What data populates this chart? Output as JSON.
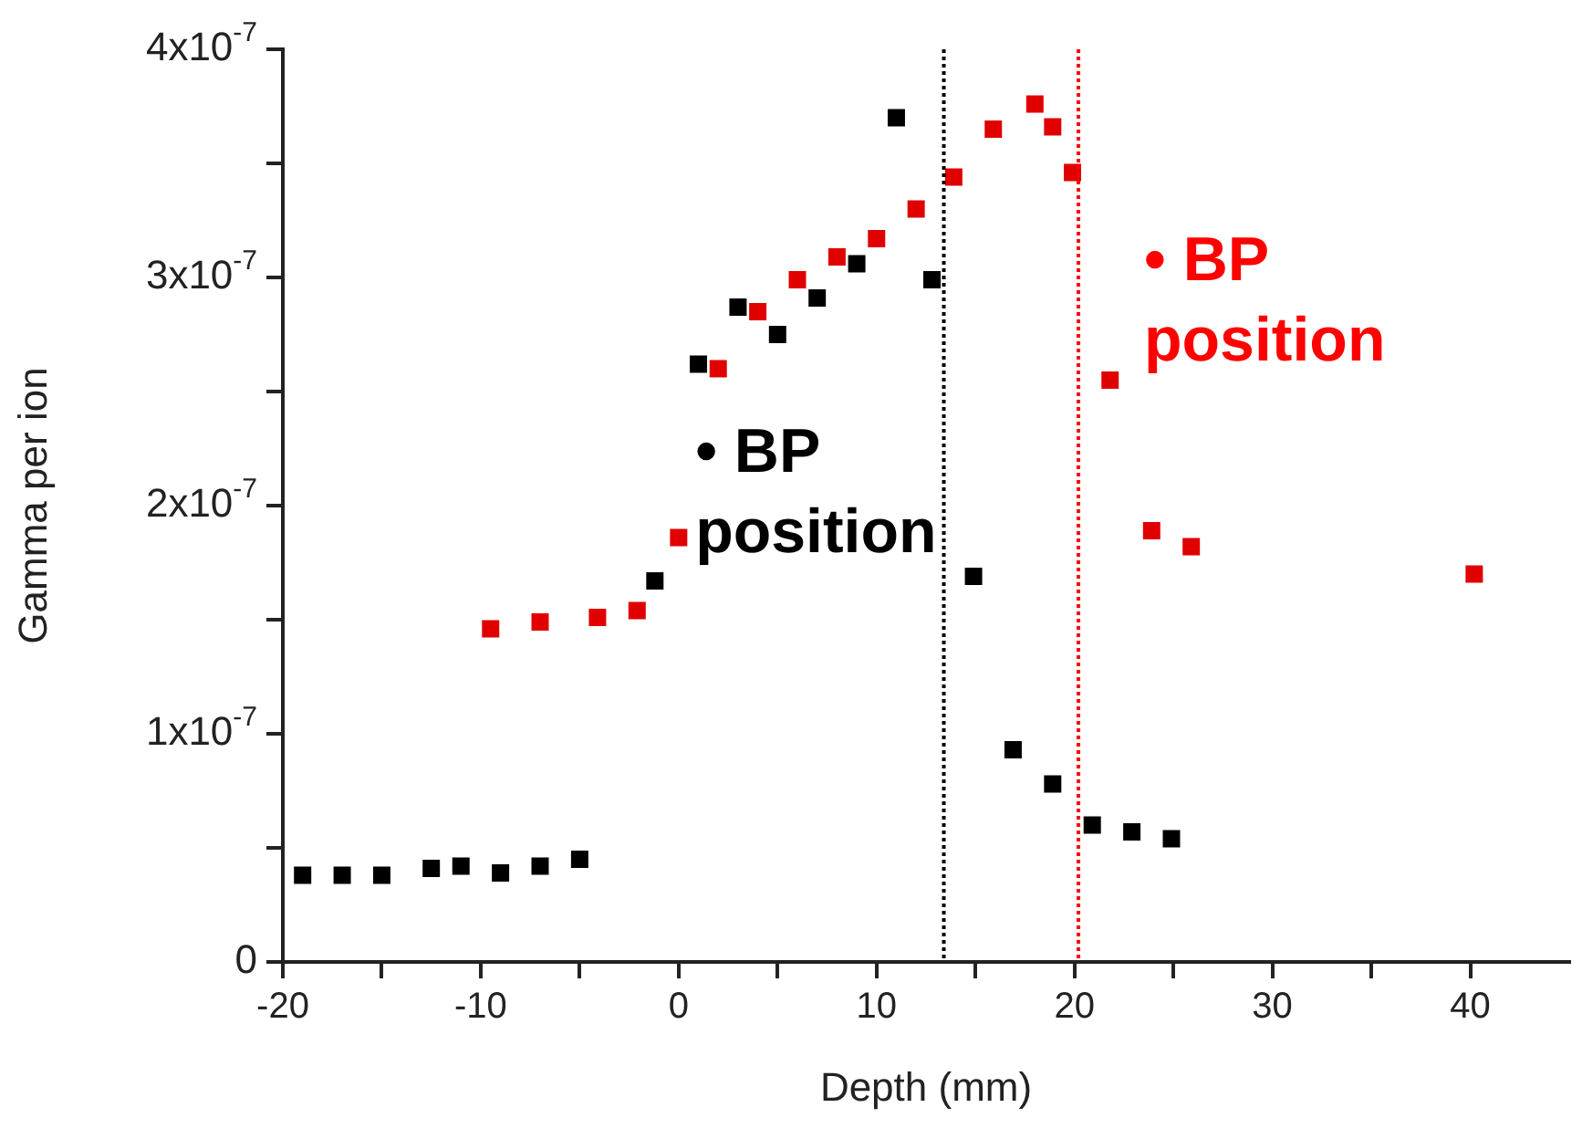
{
  "chart_data": {
    "type": "scatter",
    "xlabel": "Depth (mm)",
    "ylabel": "Gamma per ion",
    "marker": "square",
    "grid": false,
    "legend": false,
    "xlim": [
      -20,
      45
    ],
    "xticks": [
      -20,
      {
        "value": -15,
        "label": null
      },
      -10,
      {
        "value": -5,
        "label": null
      },
      0,
      {
        "value": 5,
        "label": null
      },
      10,
      {
        "value": 15,
        "label": null
      },
      20,
      {
        "value": 25,
        "label": null
      },
      30,
      {
        "value": 35,
        "label": null
      },
      40
    ],
    "ylim": [
      0,
      4e-07
    ],
    "yticks": [
      0,
      {
        "value": 5e-08,
        "label": null
      },
      {
        "value": 1e-07,
        "label": "1x10$^{-7}$"
      },
      {
        "value": 1.5e-07,
        "label": null
      },
      {
        "value": 2e-07,
        "label": "2x10$^{-7}$"
      },
      {
        "value": 2.5e-07,
        "label": null
      },
      {
        "value": 3e-07,
        "label": "3x10$^{-7}$"
      },
      {
        "value": 3.5e-07,
        "label": null
      },
      {
        "value": 4e-07,
        "label": "4x10$^{-7}$"
      }
    ],
    "series": [
      {
        "color": "#000000",
        "x": [
          -19,
          -17,
          -15,
          -12.5,
          -11,
          -9,
          -7,
          -5,
          -1.2,
          1,
          3,
          5,
          7,
          9,
          11,
          12.8,
          14.9,
          16.9,
          18.9,
          20.9,
          22.9,
          24.9
        ],
        "values": [
          3.8e-08,
          3.8e-08,
          3.8e-08,
          4.1e-08,
          4.2e-08,
          3.9e-08,
          4.2e-08,
          4.5e-08,
          1.67e-07,
          2.62e-07,
          2.87e-07,
          2.75e-07,
          2.91e-07,
          3.06e-07,
          3.7e-07,
          2.99e-07,
          1.69e-07,
          9.3e-08,
          7.8e-08,
          6e-08,
          5.7e-08,
          5.4e-08
        ]
      },
      {
        "color": "#e00000",
        "x": [
          -9.5,
          -7,
          -4.1,
          -2.1,
          0,
          2,
          4,
          6,
          8,
          10,
          12,
          13.9,
          15.9,
          18,
          18.9,
          19.9,
          21.8,
          23.9,
          25.9,
          40.2
        ],
        "values": [
          1.46e-07,
          1.49e-07,
          1.51e-07,
          1.54e-07,
          1.86e-07,
          2.6e-07,
          2.85e-07,
          2.99e-07,
          3.09e-07,
          3.17e-07,
          3.3e-07,
          3.44e-07,
          3.65e-07,
          3.76e-07,
          3.66e-07,
          3.46e-07,
          2.55e-07,
          1.89e-07,
          1.82e-07,
          1.7e-07
        ]
      }
    ],
    "ref_lines": [
      {
        "axis": "x",
        "value": 13.4,
        "label": "• BP position",
        "color": "#000000",
        "line_style": "dotted"
      },
      {
        "axis": "x",
        "value": 20.2,
        "label": "• BP position",
        "color": "#ff0000",
        "line_style": "dotted"
      }
    ]
  }
}
